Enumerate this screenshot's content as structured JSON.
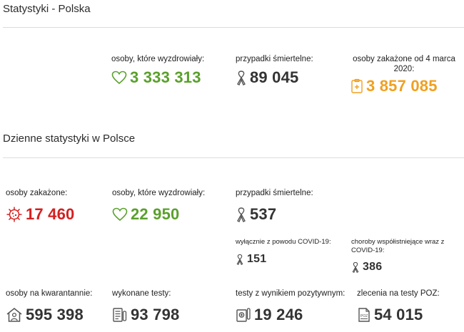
{
  "header": {
    "title": "Statystyki - Polska"
  },
  "overall": {
    "recovered": {
      "label": "osoby, które wyzdrowiały:",
      "value": "3 333 313",
      "icon": "heart-icon"
    },
    "deaths": {
      "label": "przypadki śmiertelne:",
      "value": "89 045",
      "icon": "ribbon-icon"
    },
    "infected": {
      "label": "osoby zakażone od 4 marca 2020:",
      "value": "3 857 085",
      "icon": "clipboard-medical-icon"
    }
  },
  "daily": {
    "title": "Dzienne statystyki w Polsce",
    "infected": {
      "label": "osoby zakażone:",
      "value": "17 460",
      "icon": "virus-icon"
    },
    "recovered": {
      "label": "osoby, które wyzdrowiały:",
      "value": "22 950",
      "icon": "heart-icon"
    },
    "deaths": {
      "label": "przypadki śmiertelne:",
      "value": "537",
      "icon": "ribbon-icon"
    },
    "covid_only": {
      "label": "wyłącznie z powodu COVID-19:",
      "value": "151",
      "icon": "ribbon-icon"
    },
    "comorbid": {
      "label": "choroby współistniejące wraz z COVID-19:",
      "value": "386",
      "icon": "ribbon-icon"
    },
    "quarantine": {
      "label": "osoby na kwarantannie:",
      "value": "595 398",
      "icon": "house-person-icon"
    },
    "tests": {
      "label": "wykonane testy:",
      "value": "93 798",
      "icon": "test-list-icon"
    },
    "positive_tests": {
      "label": "testy z wynikiem pozytywnym:",
      "value": "19 246",
      "icon": "positive-test-icon"
    },
    "poz_orders": {
      "label": "zlecenia na testy POZ:",
      "value": "54 015",
      "icon": "poz-document-icon"
    }
  },
  "colors": {
    "green": "#5aa02c",
    "red": "#d42020",
    "orange": "#f0a020",
    "gray": "#555555"
  }
}
